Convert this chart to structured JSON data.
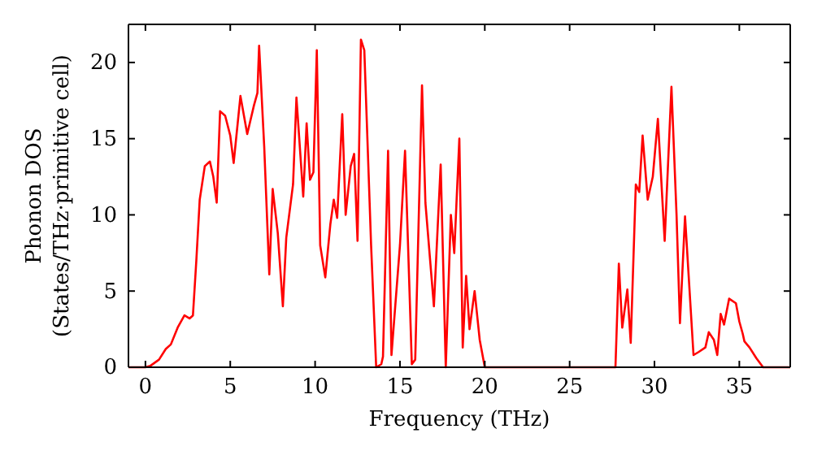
{
  "chart_data": {
    "type": "line",
    "xlabel": "Frequency (THz)",
    "ylabel": "Phonon DOS\n(States/THz·primitive cell)",
    "xlim": [
      -1,
      38
    ],
    "ylim": [
      0,
      22.5
    ],
    "xticks": [
      0,
      5,
      10,
      15,
      20,
      25,
      30,
      35
    ],
    "yticks": [
      0,
      5,
      10,
      15,
      20
    ],
    "grid": false,
    "series": [
      {
        "color": "#ff0000",
        "x": [
          -1,
          0,
          0.3,
          0.8,
          1.2,
          1.5,
          1.9,
          2.3,
          2.6,
          2.8,
          3.0,
          3.2,
          3.5,
          3.8,
          4.0,
          4.2,
          4.4,
          4.7,
          5.0,
          5.2,
          5.6,
          6.0,
          6.4,
          6.6,
          6.7,
          7.0,
          7.3,
          7.5,
          7.8,
          8.1,
          8.3,
          8.7,
          8.9,
          9.3,
          9.5,
          9.7,
          9.9,
          10.1,
          10.3,
          10.6,
          10.9,
          11.1,
          11.3,
          11.6,
          11.8,
          12.1,
          12.3,
          12.5,
          12.7,
          12.9,
          13.3,
          13.6,
          13.9,
          14.0,
          14.3,
          14.5,
          15.0,
          15.3,
          15.7,
          15.9,
          16.3,
          16.5,
          17.0,
          17.4,
          17.7,
          18.0,
          18.2,
          18.5,
          18.7,
          18.9,
          19.1,
          19.4,
          19.7,
          20.0,
          27.7,
          27.9,
          28.1,
          28.4,
          28.6,
          28.9,
          29.1,
          29.3,
          29.6,
          29.9,
          30.2,
          30.6,
          31.0,
          31.3,
          31.5,
          31.8,
          32.3,
          32.6,
          33.0,
          33.2,
          33.5,
          33.7,
          33.9,
          34.1,
          34.4,
          34.8,
          35.0,
          35.2,
          35.3,
          35.6,
          36.0,
          36.4,
          38
        ],
        "values": [
          0,
          0,
          0.1,
          0.5,
          1.2,
          1.5,
          2.6,
          3.4,
          3.2,
          3.4,
          7,
          11,
          13.2,
          13.5,
          12.5,
          10.8,
          16.8,
          16.5,
          15.2,
          13.4,
          17.8,
          15.3,
          17.2,
          18.0,
          21.1,
          14.5,
          6.1,
          11.7,
          8.8,
          4.0,
          8.5,
          12.0,
          17.7,
          11.2,
          16.0,
          12.3,
          12.8,
          20.8,
          8.0,
          5.9,
          9.4,
          11.0,
          9.8,
          16.6,
          10.0,
          13.2,
          14.0,
          8.3,
          21.5,
          20.8,
          8.0,
          0,
          0.2,
          0.7,
          14.2,
          0.8,
          8.0,
          14.2,
          0.2,
          0.5,
          18.5,
          10.8,
          4.0,
          13.3,
          0,
          10.0,
          7.5,
          15.0,
          1.3,
          6.0,
          2.5,
          5.0,
          1.8,
          0,
          0,
          6.8,
          2.6,
          5.1,
          1.6,
          12.0,
          11.5,
          15.2,
          11.0,
          12.5,
          16.3,
          8.3,
          18.4,
          10.0,
          2.9,
          9.9,
          0.8,
          1.0,
          1.3,
          2.3,
          1.8,
          0.8,
          3.5,
          2.8,
          4.5,
          4.2,
          3.0,
          2.2,
          1.7,
          1.3,
          0.6,
          0,
          0
        ]
      }
    ]
  }
}
